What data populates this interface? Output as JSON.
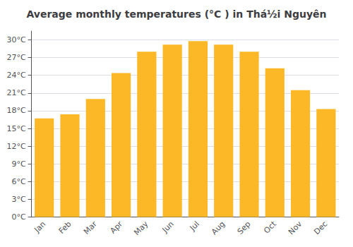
{
  "chart_data": {
    "type": "bar",
    "title": "Average monthly temperatures (°C ) in Thá½i Nguyên",
    "categories": [
      "Jan",
      "Feb",
      "Mar",
      "Apr",
      "May",
      "Jun",
      "Jul",
      "Aug",
      "Sep",
      "Oct",
      "Nov",
      "Dec"
    ],
    "values": [
      16.7,
      17.4,
      20.0,
      24.4,
      28.0,
      29.2,
      29.8,
      29.2,
      28.0,
      25.2,
      21.5,
      18.3
    ],
    "color": "#FDB827",
    "ylim": [
      0,
      31.5
    ],
    "yticks": [
      {
        "value": 0,
        "label": "0°C"
      },
      {
        "value": 3,
        "label": "3°C"
      },
      {
        "value": 6,
        "label": "6°C"
      },
      {
        "value": 9,
        "label": "9°C"
      },
      {
        "value": 12,
        "label": "12°C"
      },
      {
        "value": 15,
        "label": "15°C"
      },
      {
        "value": 18,
        "label": "18°C"
      },
      {
        "value": 21,
        "label": "21°C"
      },
      {
        "value": 24,
        "label": "24°C"
      },
      {
        "value": 27,
        "label": "27°C"
      },
      {
        "value": 30,
        "label": "30°C"
      }
    ],
    "grid": true
  }
}
